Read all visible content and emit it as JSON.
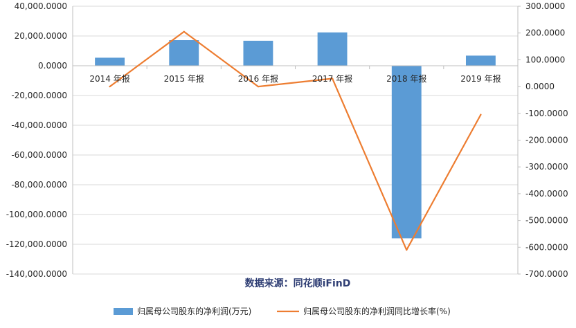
{
  "chart_data": {
    "type": "bar+line",
    "categories": [
      "2014 年报",
      "2015 年报",
      "2016 年报",
      "2017 年报",
      "2018 年报",
      "2019 年报"
    ],
    "series": [
      {
        "name": "归属母公司股东的净利润(万元)",
        "type": "bar",
        "axis": "left",
        "color": "#5b9bd5",
        "values": [
          5400,
          17200,
          16800,
          22400,
          -116000,
          6800
        ]
      },
      {
        "name": "归属母公司股东的净利润同比增长率(%)",
        "type": "line",
        "axis": "right",
        "color": "#ed7d31",
        "values": [
          0,
          205,
          0,
          30,
          -610,
          -105
        ]
      }
    ],
    "y_left": {
      "ylim": [
        -140000,
        40000
      ],
      "ticks": [
        "40,000.0000",
        "20,000.0000",
        "0.0000",
        "-20,000.0000",
        "-40,000.0000",
        "-60,000.0000",
        "-80,000.0000",
        "-100,000.0000",
        "-120,000.0000",
        "-140,000.0000"
      ]
    },
    "y_right": {
      "ylim": [
        -700,
        300
      ],
      "ticks": [
        "300.0000",
        "200.0000",
        "100.0000",
        "0.0000",
        "-100.0000",
        "-200.0000",
        "-300.0000",
        "-400.0000",
        "-500.0000",
        "-600.0000",
        "-700.0000"
      ]
    },
    "grid": true,
    "legend_position": "bottom"
  },
  "source_text": "数据来源：同花顺iFinD"
}
